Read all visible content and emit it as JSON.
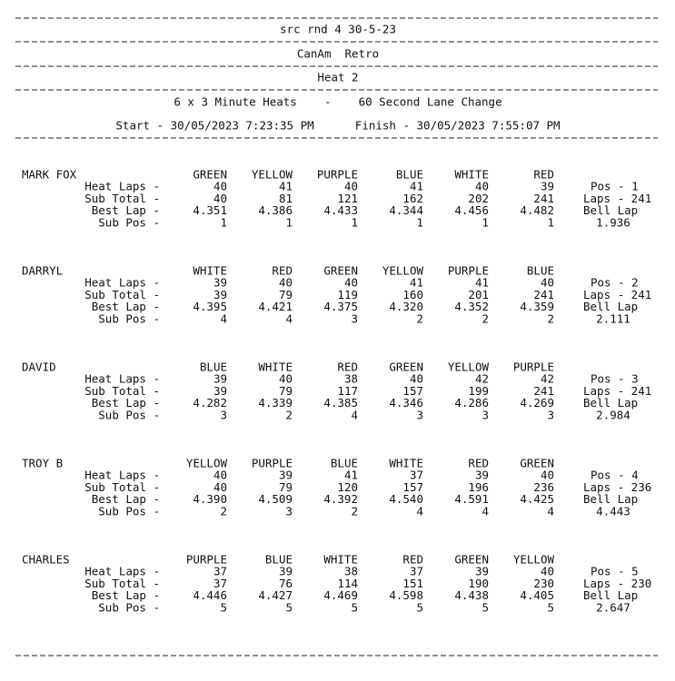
{
  "header": {
    "lines": [
      "src rnd 4 30-5-23",
      "CanAm  Retro",
      "Heat 2",
      "6 x 3 Minute Heats    -    60 Second Lane Change",
      "Start - 30/05/2023 7:23:35 PM      Finish - 30/05/2023 7:55:07 PM"
    ]
  },
  "row_labels": [
    "Heat Laps -",
    "Sub Total -",
    "Best Lap -",
    "Sub Pos -"
  ],
  "drivers": [
    {
      "name": "MARK FOX",
      "lanes": [
        "GREEN",
        "YELLOW",
        "PURPLE",
        "BLUE",
        "WHITE",
        "RED"
      ],
      "rows": [
        [
          "40",
          "41",
          "40",
          "41",
          "40",
          "39"
        ],
        [
          "40",
          "81",
          "121",
          "162",
          "202",
          "241"
        ],
        [
          "4.351",
          "4.386",
          "4.433",
          "4.344",
          "4.456",
          "4.482"
        ],
        [
          "1",
          "1",
          "1",
          "1",
          "1",
          "1"
        ]
      ],
      "pos": "Pos - 1",
      "laps": "Laps - 241",
      "bell_label": "Bell Lap",
      "bell_lap": "1.936"
    },
    {
      "name": "DARRYL",
      "lanes": [
        "WHITE",
        "RED",
        "GREEN",
        "YELLOW",
        "PURPLE",
        "BLUE"
      ],
      "rows": [
        [
          "39",
          "40",
          "40",
          "41",
          "41",
          "40"
        ],
        [
          "39",
          "79",
          "119",
          "160",
          "201",
          "241"
        ],
        [
          "4.395",
          "4.421",
          "4.375",
          "4.320",
          "4.352",
          "4.359"
        ],
        [
          "4",
          "4",
          "3",
          "2",
          "2",
          "2"
        ]
      ],
      "pos": "Pos - 2",
      "laps": "Laps - 241",
      "bell_label": "Bell Lap",
      "bell_lap": "2.111"
    },
    {
      "name": "DAVID",
      "lanes": [
        "BLUE",
        "WHITE",
        "RED",
        "GREEN",
        "YELLOW",
        "PURPLE"
      ],
      "rows": [
        [
          "39",
          "40",
          "38",
          "40",
          "42",
          "42"
        ],
        [
          "39",
          "79",
          "117",
          "157",
          "199",
          "241"
        ],
        [
          "4.282",
          "4.339",
          "4.385",
          "4.346",
          "4.286",
          "4.269"
        ],
        [
          "3",
          "2",
          "4",
          "3",
          "3",
          "3"
        ]
      ],
      "pos": "Pos - 3",
      "laps": "Laps - 241",
      "bell_label": "Bell Lap",
      "bell_lap": "2.984"
    },
    {
      "name": "TROY B",
      "lanes": [
        "YELLOW",
        "PURPLE",
        "BLUE",
        "WHITE",
        "RED",
        "GREEN"
      ],
      "rows": [
        [
          "40",
          "39",
          "41",
          "37",
          "39",
          "40"
        ],
        [
          "40",
          "79",
          "120",
          "157",
          "196",
          "236"
        ],
        [
          "4.390",
          "4.509",
          "4.392",
          "4.540",
          "4.591",
          "4.425"
        ],
        [
          "2",
          "3",
          "2",
          "4",
          "4",
          "4"
        ]
      ],
      "pos": "Pos - 4",
      "laps": "Laps - 236",
      "bell_label": "Bell Lap",
      "bell_lap": "4.443"
    },
    {
      "name": "CHARLES",
      "lanes": [
        "PURPLE",
        "BLUE",
        "WHITE",
        "RED",
        "GREEN",
        "YELLOW"
      ],
      "rows": [
        [
          "37",
          "39",
          "38",
          "37",
          "39",
          "40"
        ],
        [
          "37",
          "76",
          "114",
          "151",
          "190",
          "230"
        ],
        [
          "4.446",
          "4.427",
          "4.469",
          "4.598",
          "4.438",
          "4.405"
        ],
        [
          "5",
          "5",
          "5",
          "5",
          "5",
          "5"
        ]
      ],
      "pos": "Pos - 5",
      "laps": "Laps - 230",
      "bell_label": "Bell Lap",
      "bell_lap": "2.647"
    }
  ]
}
